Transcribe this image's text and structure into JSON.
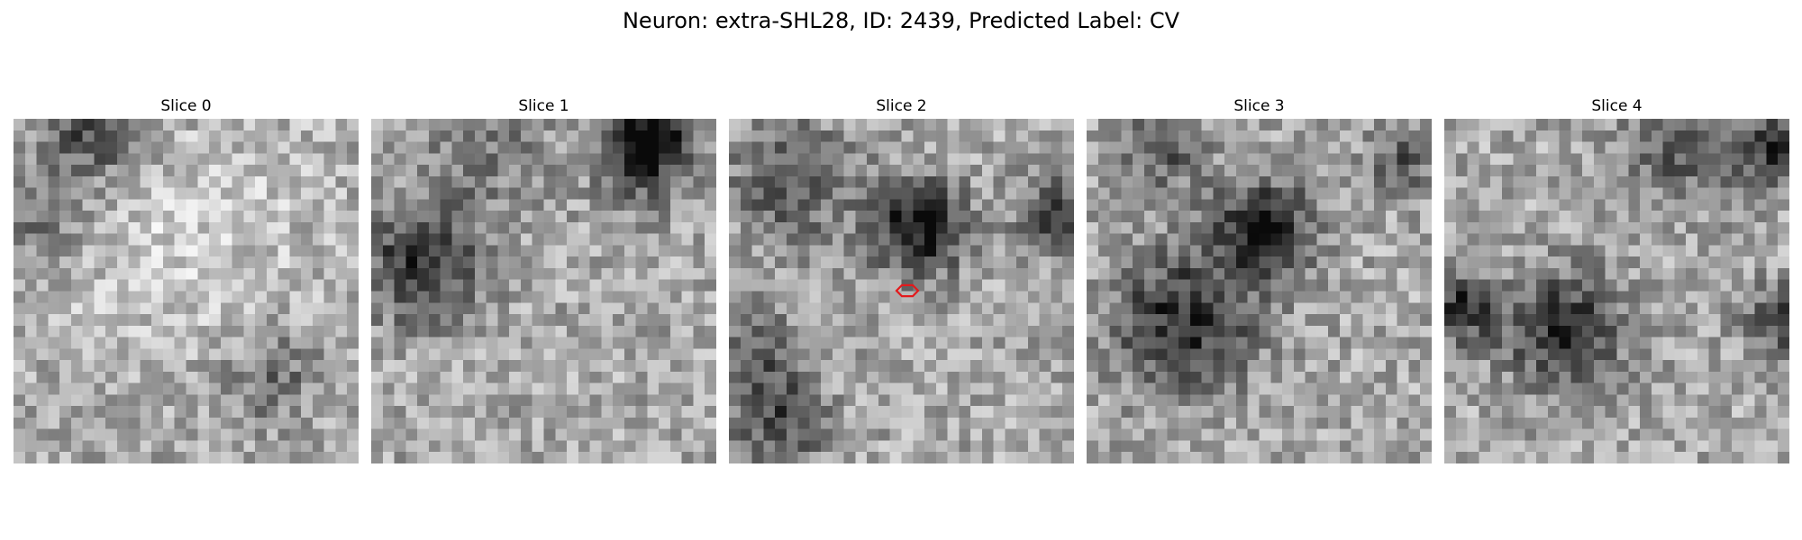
{
  "figure": {
    "title": "Neuron: extra-SHL28, ID: 2439, Predicted Label: CV"
  },
  "panels": [
    {
      "title": "Slice 0"
    },
    {
      "title": "Slice 1"
    },
    {
      "title": "Slice 2"
    },
    {
      "title": "Slice 3"
    },
    {
      "title": "Slice 4"
    }
  ],
  "image": {
    "colormap": "gray",
    "grid": 30,
    "marker_slice": 2,
    "marker_color": "#e31a1c",
    "marker_shape": "hexagon-outline"
  }
}
